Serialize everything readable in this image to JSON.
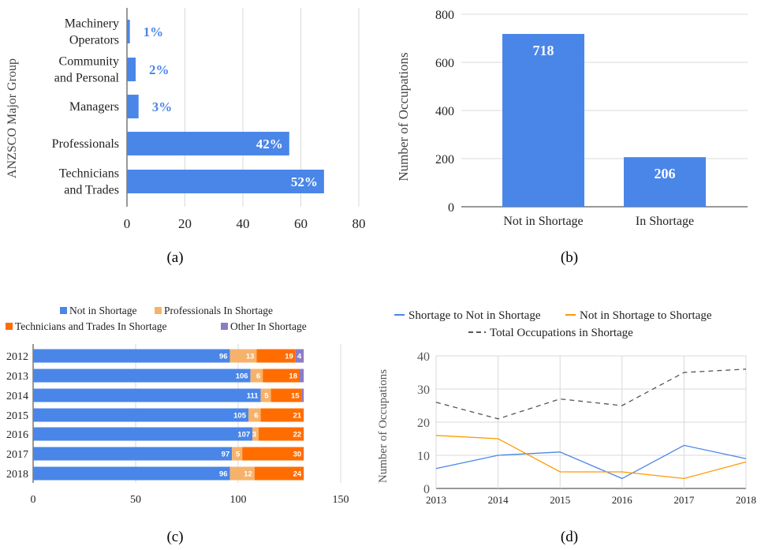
{
  "captions": {
    "a": "(a)",
    "b": "(b)",
    "c": "(c)",
    "d": "(d)"
  },
  "colors": {
    "blue": "#4a86e8",
    "light_orange": "#f6b26b",
    "orange": "#ff6d01",
    "purple": "#8e7cc3",
    "line_orange": "#ff9900",
    "dash": "#555555"
  },
  "chart_data": [
    {
      "id": "a",
      "type": "bar",
      "orientation": "horizontal",
      "ylabel": "ANZSCO Major Group",
      "categories": [
        [
          "Machinery",
          "Operators"
        ],
        [
          "Community",
          "and Personal"
        ],
        [
          "Managers"
        ],
        [
          "Professionals"
        ],
        [
          "Technicians",
          "and Trades"
        ]
      ],
      "values": [
        1,
        3,
        4,
        56,
        68
      ],
      "data_labels": [
        "1%",
        "2%",
        "3%",
        "42%",
        "52%"
      ],
      "xlim": [
        0,
        80
      ],
      "xticks": [
        "0",
        "20",
        "40",
        "60",
        "80"
      ],
      "grid": true
    },
    {
      "id": "b",
      "type": "bar",
      "ylabel": "Number of Occupations",
      "categories": [
        "Not in Shortage",
        "In Shortage"
      ],
      "values": [
        718,
        206
      ],
      "data_labels": [
        "718",
        "206"
      ],
      "ylim": [
        0,
        800
      ],
      "yticks": [
        "0",
        "200",
        "400",
        "600",
        "800"
      ],
      "grid": true
    },
    {
      "id": "c",
      "type": "bar",
      "orientation": "horizontal",
      "stacked": true,
      "categories": [
        "2012",
        "2013",
        "2014",
        "2015",
        "2016",
        "2017",
        "2018"
      ],
      "legend": [
        "Not in Shortage",
        "Professionals In Shortage",
        "Technicians and Trades In Shortage",
        "Other In Shortage"
      ],
      "series": [
        {
          "name": "Not in Shortage",
          "values": [
            96,
            106,
            111,
            105,
            107,
            97,
            96
          ]
        },
        {
          "name": "Professionals In Shortage",
          "values": [
            13,
            6,
            5,
            6,
            3,
            5,
            12
          ]
        },
        {
          "name": "Technicians and Trades In Shortage",
          "values": [
            19,
            18,
            15,
            21,
            22,
            30,
            24
          ]
        },
        {
          "name": "Other In Shortage",
          "values": [
            4,
            2,
            1,
            0,
            0,
            0,
            0
          ]
        }
      ],
      "segment_labels": [
        [
          "96",
          "13",
          "19",
          "4"
        ],
        [
          "106",
          "6",
          "18",
          ""
        ],
        [
          "111",
          "5",
          "15",
          ""
        ],
        [
          "105",
          "6",
          "21",
          ""
        ],
        [
          "107",
          "3",
          "22",
          ""
        ],
        [
          "97",
          "5",
          "30",
          ""
        ],
        [
          "96",
          "12",
          "24",
          ""
        ]
      ],
      "xlim": [
        0,
        150
      ],
      "xticks": [
        "0",
        "50",
        "100",
        "150"
      ],
      "grid": true
    },
    {
      "id": "d",
      "type": "line",
      "ylabel": "Number of Occupations",
      "x": [
        "2013",
        "2014",
        "2015",
        "2016",
        "2017",
        "2018"
      ],
      "series": [
        {
          "name": "Shortage to Not in Shortage",
          "values": [
            6,
            10,
            11,
            3,
            13,
            9
          ]
        },
        {
          "name": "Not in Shortage to Shortage",
          "values": [
            16,
            15,
            5,
            5,
            3,
            8
          ]
        },
        {
          "name": "Total Occupations in Shortage",
          "values": [
            26,
            21,
            27,
            25,
            35,
            36
          ],
          "dashed": true
        }
      ],
      "ylim": [
        0,
        40
      ],
      "yticks": [
        "0",
        "10",
        "20",
        "30",
        "40"
      ],
      "grid": true
    }
  ]
}
